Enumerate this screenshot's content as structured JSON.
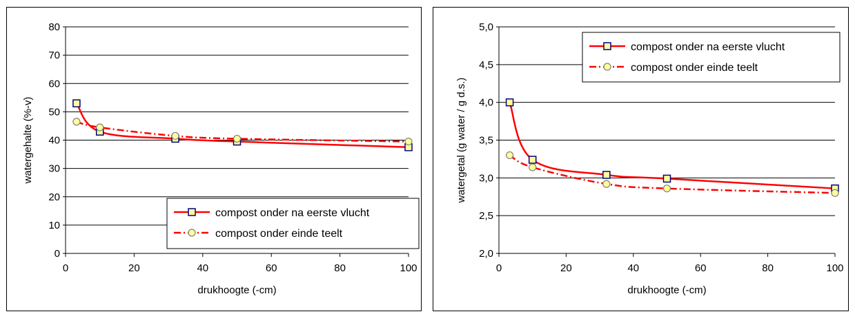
{
  "chart_data": [
    {
      "type": "line",
      "title": "",
      "xlabel": "drukhoogte (-cm)",
      "ylabel": "watergehalte (%-v)",
      "xlim": [
        0,
        100
      ],
      "ylim": [
        0,
        80
      ],
      "xticks": [
        "0",
        "20",
        "40",
        "60",
        "80",
        "100"
      ],
      "yticks": [
        "0",
        "10",
        "20",
        "30",
        "40",
        "50",
        "60",
        "70",
        "80"
      ],
      "xtick_values": [
        0,
        20,
        40,
        60,
        80,
        100
      ],
      "ytick_values": [
        0,
        10,
        20,
        30,
        40,
        50,
        60,
        70,
        80
      ],
      "grid": "horizontal",
      "legend_position": "bottom-right",
      "series": [
        {
          "name": "compost onder na eerste vlucht",
          "x": [
            3.2,
            10,
            32,
            50,
            100
          ],
          "y": [
            53,
            43,
            40.5,
            39.5,
            37.5
          ],
          "color": "#ff0000",
          "marker": "square",
          "marker_fill": "#ffff99",
          "marker_stroke": "#000080",
          "dash": "solid"
        },
        {
          "name": "compost onder einde teelt",
          "x": [
            3.2,
            10,
            32,
            50,
            100
          ],
          "y": [
            46.5,
            44.5,
            41.5,
            40.5,
            39.5
          ],
          "color": "#ff0000",
          "marker": "circle",
          "marker_fill": "#ffff99",
          "marker_stroke": "#808080",
          "dash": "dashdot"
        }
      ]
    },
    {
      "type": "line",
      "title": "",
      "xlabel": "drukhoogte (-cm)",
      "ylabel": "watergetal (g water / g d.s.)",
      "xlim": [
        0,
        100
      ],
      "ylim": [
        2.0,
        5.0
      ],
      "xticks": [
        "0",
        "20",
        "40",
        "60",
        "80",
        "100"
      ],
      "yticks": [
        "2,0",
        "2,5",
        "3,0",
        "3,5",
        "4,0",
        "4,5",
        "5,0"
      ],
      "xtick_values": [
        0,
        20,
        40,
        60,
        80,
        100
      ],
      "ytick_values": [
        2.0,
        2.5,
        3.0,
        3.5,
        4.0,
        4.5,
        5.0
      ],
      "grid": "horizontal",
      "legend_position": "top-right",
      "series": [
        {
          "name": "compost onder na eerste vlucht",
          "x": [
            3.2,
            10,
            32,
            50,
            100
          ],
          "y": [
            4.0,
            3.24,
            3.04,
            2.99,
            2.86
          ],
          "color": "#ff0000",
          "marker": "square",
          "marker_fill": "#ffff99",
          "marker_stroke": "#000080",
          "dash": "solid"
        },
        {
          "name": "compost onder einde teelt",
          "x": [
            3.2,
            10,
            32,
            50,
            100
          ],
          "y": [
            3.3,
            3.14,
            2.92,
            2.86,
            2.8
          ],
          "color": "#ff0000",
          "marker": "circle",
          "marker_fill": "#ffff99",
          "marker_stroke": "#808080",
          "dash": "dashdot"
        }
      ]
    }
  ]
}
